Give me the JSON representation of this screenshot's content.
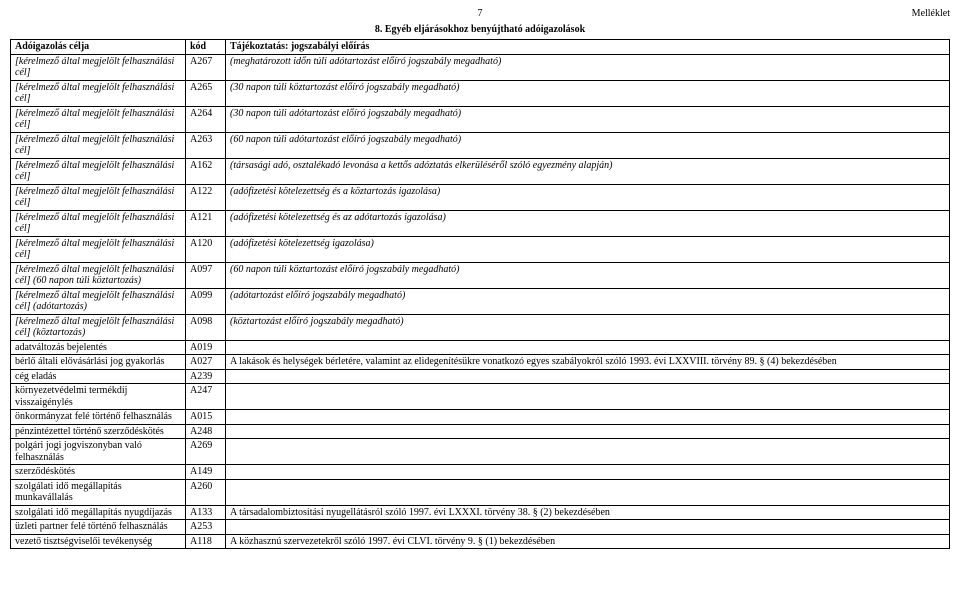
{
  "page_number": "7",
  "appendix_label": "Melléklet",
  "section_title": "8. Egyéb eljárásokhoz benyújtható adóigazolások",
  "columns": {
    "c1": "Adóigazolás célja",
    "c2": "kód",
    "c3": "Tájékoztatás: jogszabályi előírás"
  },
  "rows": [
    {
      "c1": "[kérelmező által megjelölt felhasználási cél]",
      "c1_italic": true,
      "c2": "A267",
      "c3": "(meghatározott időn túli adótartozást előíró jogszabály megadható)",
      "c3_italic": true
    },
    {
      "c1": "[kérelmező által megjelölt felhasználási cél]",
      "c1_italic": true,
      "c2": "A265",
      "c3": "(30 napon túli köztartozást előíró jogszabály megadható)",
      "c3_italic": true
    },
    {
      "c1": "[kérelmező által megjelölt felhasználási cél]",
      "c1_italic": true,
      "c2": "A264",
      "c3": "(30 napon túli adótartozást előíró jogszabály megadható)",
      "c3_italic": true
    },
    {
      "c1": "[kérelmező által megjelölt felhasználási cél]",
      "c1_italic": true,
      "c2": "A263",
      "c3": "(60 napon túli adótartozást előíró jogszabály megadható)",
      "c3_italic": true
    },
    {
      "c1": "[kérelmező által megjelölt felhasználási cél]",
      "c1_italic": true,
      "c2": "A162",
      "c3": "(társasági adó, osztalékadó levonása a kettős adóztatás elkerüléséről szóló egyezmény alapján)",
      "c3_italic": true
    },
    {
      "c1": "[kérelmező által megjelölt felhasználási cél]",
      "c1_italic": true,
      "c2": "A122",
      "c3": "(adófizetési kötelezettség és a köztartozás igazolása)",
      "c3_italic": true
    },
    {
      "c1": "[kérelmező által megjelölt felhasználási cél]",
      "c1_italic": true,
      "c2": "A121",
      "c3": "(adófizetési kötelezettség és az adótartozás igazolása)",
      "c3_italic": true
    },
    {
      "c1": "[kérelmező által megjelölt felhasználási cél]",
      "c1_italic": true,
      "c2": "A120",
      "c3": "(adófizetési kötelezettség igazolása)",
      "c3_italic": true
    },
    {
      "c1": "[kérelmező által megjelölt felhasználási cél] (60 napon túli köztartozás)",
      "c1_italic": true,
      "c2": "A097",
      "c3": "(60 napon túli köztartozást előíró jogszabály megadható)",
      "c3_italic": true
    },
    {
      "c1": "[kérelmező által megjelölt felhasználási cél] (adótartozás)",
      "c1_italic": true,
      "c2": "A099",
      "c3": "(adótartozást előíró jogszabály megadható)",
      "c3_italic": true
    },
    {
      "c1": "[kérelmező által megjelölt felhasználási cél] (köztartozás)",
      "c1_italic": true,
      "c2": "A098",
      "c3": "(köztartozást előíró jogszabály megadható)",
      "c3_italic": true
    },
    {
      "c1": "adatváltozás bejelentés",
      "c1_italic": false,
      "c2": "A019",
      "c3": "",
      "c3_italic": false
    },
    {
      "c1": "bérlő általi elővásárlási jog gyakorlás",
      "c1_italic": false,
      "c2": "A027",
      "c3": "A lakások és helységek bérletére, valamint az elidegenítésükre vonatkozó egyes szabályokról szóló 1993. évi LXXVIII. törvény 89. § (4) bekezdésében",
      "c3_italic": false
    },
    {
      "c1": "cég eladás",
      "c1_italic": false,
      "c2": "A239",
      "c3": "",
      "c3_italic": false
    },
    {
      "c1": "környezetvédelmi termékdíj visszaigénylés",
      "c1_italic": false,
      "c2": "A247",
      "c3": "",
      "c3_italic": false
    },
    {
      "c1": "önkormányzat felé történő felhasználás",
      "c1_italic": false,
      "c2": "A015",
      "c3": "",
      "c3_italic": false
    },
    {
      "c1": "pénzintézettel történő szerződéskötés",
      "c1_italic": false,
      "c2": "A248",
      "c3": "",
      "c3_italic": false
    },
    {
      "c1": "polgári jogi jogviszonyban való felhasználás",
      "c1_italic": false,
      "c2": "A269",
      "c3": "",
      "c3_italic": false
    },
    {
      "c1": "szerződéskötés",
      "c1_italic": false,
      "c2": "A149",
      "c3": "",
      "c3_italic": false
    },
    {
      "c1": "szolgálati idő megállapítás munkavállalás",
      "c1_italic": false,
      "c2": "A260",
      "c3": "",
      "c3_italic": false
    },
    {
      "c1": "szolgálati idő megállapítás nyugdíjazás",
      "c1_italic": false,
      "c2": "A133",
      "c3": "A társadalombiztosítási nyugellátásról szóló 1997. évi LXXXI. törvény 38. § (2) bekezdésében",
      "c3_italic": false
    },
    {
      "c1": "üzleti partner felé történő felhasználás",
      "c1_italic": false,
      "c2": "A253",
      "c3": "",
      "c3_italic": false
    },
    {
      "c1": "vezető tisztségviselői tevékenység",
      "c1_italic": false,
      "c2": "A118",
      "c3": "A közhasznú szervezetekről szóló 1997. évi CLVI. törvény 9. § (1) bekezdésében",
      "c3_italic": false
    }
  ]
}
